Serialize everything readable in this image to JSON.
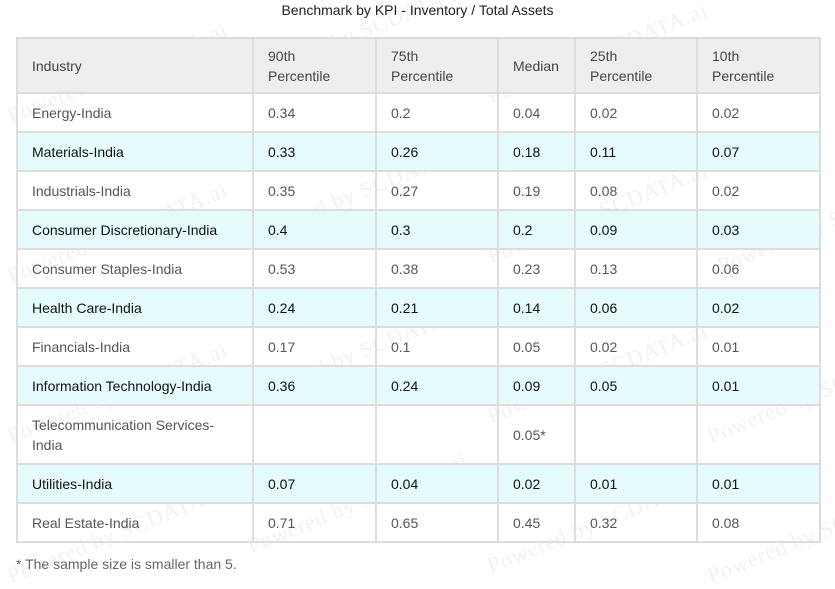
{
  "title": "Benchmark by KPI - Inventory / Total Assets",
  "headers": [
    "Industry",
    "90th Percentile",
    "75th Percentile",
    "Median",
    "25th Percentile",
    "10th Percentile"
  ],
  "rows": [
    {
      "industry": "Energy-India",
      "p90": "0.34",
      "p75": "0.2",
      "median": "0.04",
      "p25": "0.02",
      "p10": "0.02"
    },
    {
      "industry": "Materials-India",
      "p90": "0.33",
      "p75": "0.26",
      "median": "0.18",
      "p25": "0.11",
      "p10": "0.07"
    },
    {
      "industry": "Industrials-India",
      "p90": "0.35",
      "p75": "0.27",
      "median": "0.19",
      "p25": "0.08",
      "p10": "0.02"
    },
    {
      "industry": "Consumer Discretionary-India",
      "p90": "0.4",
      "p75": "0.3",
      "median": "0.2",
      "p25": "0.09",
      "p10": "0.03"
    },
    {
      "industry": "Consumer Staples-India",
      "p90": "0.53",
      "p75": "0.38",
      "median": "0.23",
      "p25": "0.13",
      "p10": "0.06"
    },
    {
      "industry": "Health Care-India",
      "p90": "0.24",
      "p75": "0.21",
      "median": "0.14",
      "p25": "0.06",
      "p10": "0.02"
    },
    {
      "industry": "Financials-India",
      "p90": "0.17",
      "p75": "0.1",
      "median": "0.05",
      "p25": "0.02",
      "p10": "0.01"
    },
    {
      "industry": "Information Technology-India",
      "p90": "0.36",
      "p75": "0.24",
      "median": "0.09",
      "p25": "0.05",
      "p10": "0.01"
    },
    {
      "industry": "Telecommunication Services-India",
      "p90": "",
      "p75": "",
      "median": "0.05*",
      "p25": "",
      "p10": ""
    },
    {
      "industry": "Utilities-India",
      "p90": "0.07",
      "p75": "0.04",
      "median": "0.02",
      "p25": "0.01",
      "p10": "0.01"
    },
    {
      "industry": "Real Estate-India",
      "p90": "0.71",
      "p75": "0.65",
      "median": "0.45",
      "p25": "0.32",
      "p10": "0.08"
    }
  ],
  "footnote": "* The sample size is smaller than 5.",
  "watermark": "Powered by SCDATA.ai",
  "colors": {
    "header_bg": "#eeeeee",
    "alt_row_bg": "#e6fcfc",
    "border": "#dddddd"
  }
}
